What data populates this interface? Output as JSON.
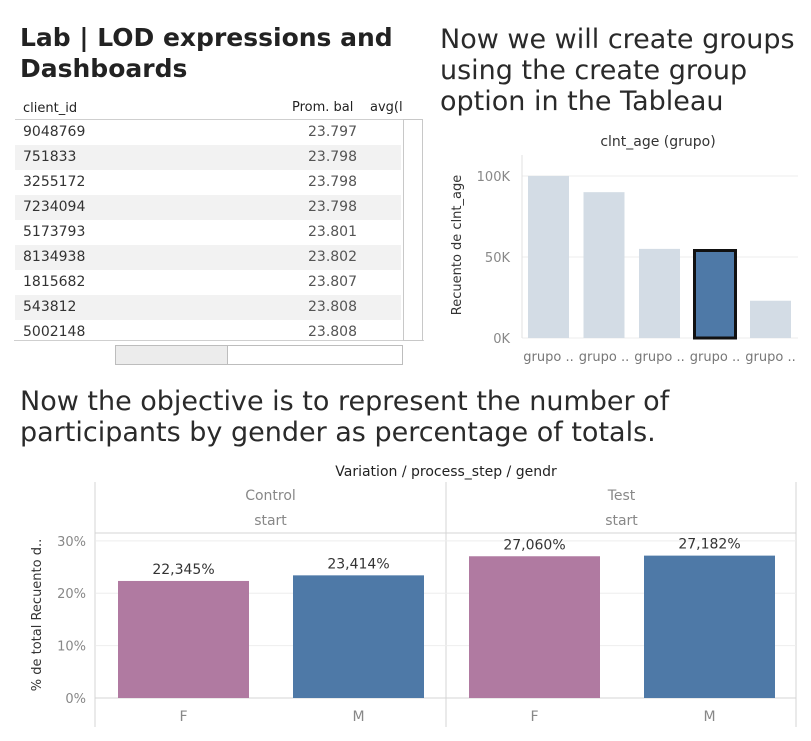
{
  "page": {
    "title": "Lab | LOD expressions and Dashboards",
    "groups_text": "Now we will create groups using the create group option in the Tableau",
    "objective_text": "Now the objective is to represent the number of participants by gender as percentage of totals."
  },
  "table": {
    "columns": [
      "client_id",
      "Prom. bal",
      "avg(l"
    ],
    "rows": [
      {
        "client_id": "9048769",
        "bal": "23.797"
      },
      {
        "client_id": "751833",
        "bal": "23.798"
      },
      {
        "client_id": "3255172",
        "bal": "23.798"
      },
      {
        "client_id": "7234094",
        "bal": "23.798"
      },
      {
        "client_id": "5173793",
        "bal": "23.801"
      },
      {
        "client_id": "8134938",
        "bal": "23.802"
      },
      {
        "client_id": "1815682",
        "bal": "23.807"
      },
      {
        "client_id": "543812",
        "bal": "23.808"
      },
      {
        "client_id": "5002148",
        "bal": "23.808"
      }
    ],
    "row_shade": "#f2f2f2"
  },
  "chart_data": [
    {
      "type": "bar",
      "title": "clnt_age (grupo)",
      "ylabel": "Recuento de clnt_age",
      "categories": [
        "grupo ..",
        "grupo ..",
        "grupo ..",
        "grupo ..",
        "grupo .."
      ],
      "values": [
        100000,
        90000,
        55000,
        54000,
        23000
      ],
      "selected_index": 3,
      "yticks": [
        0,
        50000,
        100000
      ],
      "ytick_labels": [
        "0K",
        "50K",
        "100K"
      ],
      "ylim": [
        0,
        108000
      ],
      "colors": {
        "bar": "#d3dce5",
        "selected": "#4e79a7",
        "selected_border": "#111111"
      }
    },
    {
      "type": "bar",
      "title": "Variation / process_step / gendr",
      "ylabel": "% de total Recuento d..",
      "panels": [
        {
          "name": "Control",
          "step": "start",
          "categories": [
            "F",
            "M"
          ],
          "values": [
            22.345,
            23.414
          ],
          "labels": [
            "22,345%",
            "23,414%"
          ]
        },
        {
          "name": "Test",
          "step": "start",
          "categories": [
            "F",
            "M"
          ],
          "values": [
            27.06,
            27.182
          ],
          "labels": [
            "27,060%",
            "27,182%"
          ]
        }
      ],
      "yticks": [
        0,
        10,
        20,
        30
      ],
      "ytick_labels": [
        "0%",
        "10%",
        "20%",
        "30%"
      ],
      "ylim": [
        0,
        31.5
      ],
      "colors": {
        "F": "#b07aa1",
        "M": "#4e79a7"
      }
    }
  ]
}
